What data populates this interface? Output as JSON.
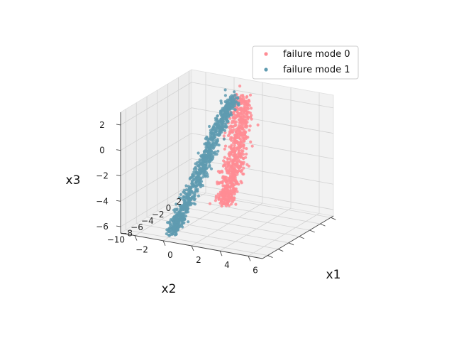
{
  "chart_data": {
    "type": "scatter3d",
    "title": "",
    "xlabel": "x1",
    "ylabel": "x2",
    "zlabel": "x3",
    "xlim": [
      -3,
      7
    ],
    "ylim": [
      -11,
      2.5
    ],
    "zlim": [
      -6.5,
      3
    ],
    "x_ticks": [
      "−2",
      "0",
      "2",
      "4",
      "6"
    ],
    "y_ticks": [
      "2",
      "0",
      "−2",
      "−4",
      "−6",
      "−8",
      "−10"
    ],
    "z_ticks": [
      "2",
      "0",
      "−2",
      "−4",
      "−6"
    ],
    "x_tick_values": [
      -2,
      0,
      2,
      4,
      6
    ],
    "y_tick_values": [
      2,
      0,
      -2,
      -4,
      -6,
      -8,
      -10
    ],
    "z_tick_values": [
      2,
      0,
      -2,
      -4,
      -6
    ],
    "grid": true,
    "legend_position": "top-right",
    "series": [
      {
        "name": "failure mode 0",
        "color": "#ff8c94",
        "curve": [
          {
            "x": 1.6,
            "y": -0.6,
            "z": 2.6
          },
          {
            "x": 2.2,
            "y": -2.2,
            "z": 1.2
          },
          {
            "x": 2.7,
            "y": -4.2,
            "z": -0.6
          },
          {
            "x": 2.9,
            "y": -6.0,
            "z": -2.4
          },
          {
            "x": 3.0,
            "y": -7.6,
            "z": -3.8
          }
        ],
        "spread": {
          "x": 0.45,
          "y": 0.7,
          "z": 0.4
        }
      },
      {
        "name": "failure mode 1",
        "color": "#5f9bb0",
        "curve": [
          {
            "x": 1.2,
            "y": -0.8,
            "z": 2.6
          },
          {
            "x": 1.0,
            "y": -2.6,
            "z": 1.0
          },
          {
            "x": 0.8,
            "y": -4.6,
            "z": -1.0
          },
          {
            "x": 0.6,
            "y": -6.6,
            "z": -3.0
          },
          {
            "x": 0.4,
            "y": -8.6,
            "z": -5.0
          },
          {
            "x": 0.2,
            "y": -9.8,
            "z": -6.0
          }
        ],
        "spread": {
          "x": 0.3,
          "y": 0.5,
          "z": 0.35
        }
      }
    ]
  }
}
